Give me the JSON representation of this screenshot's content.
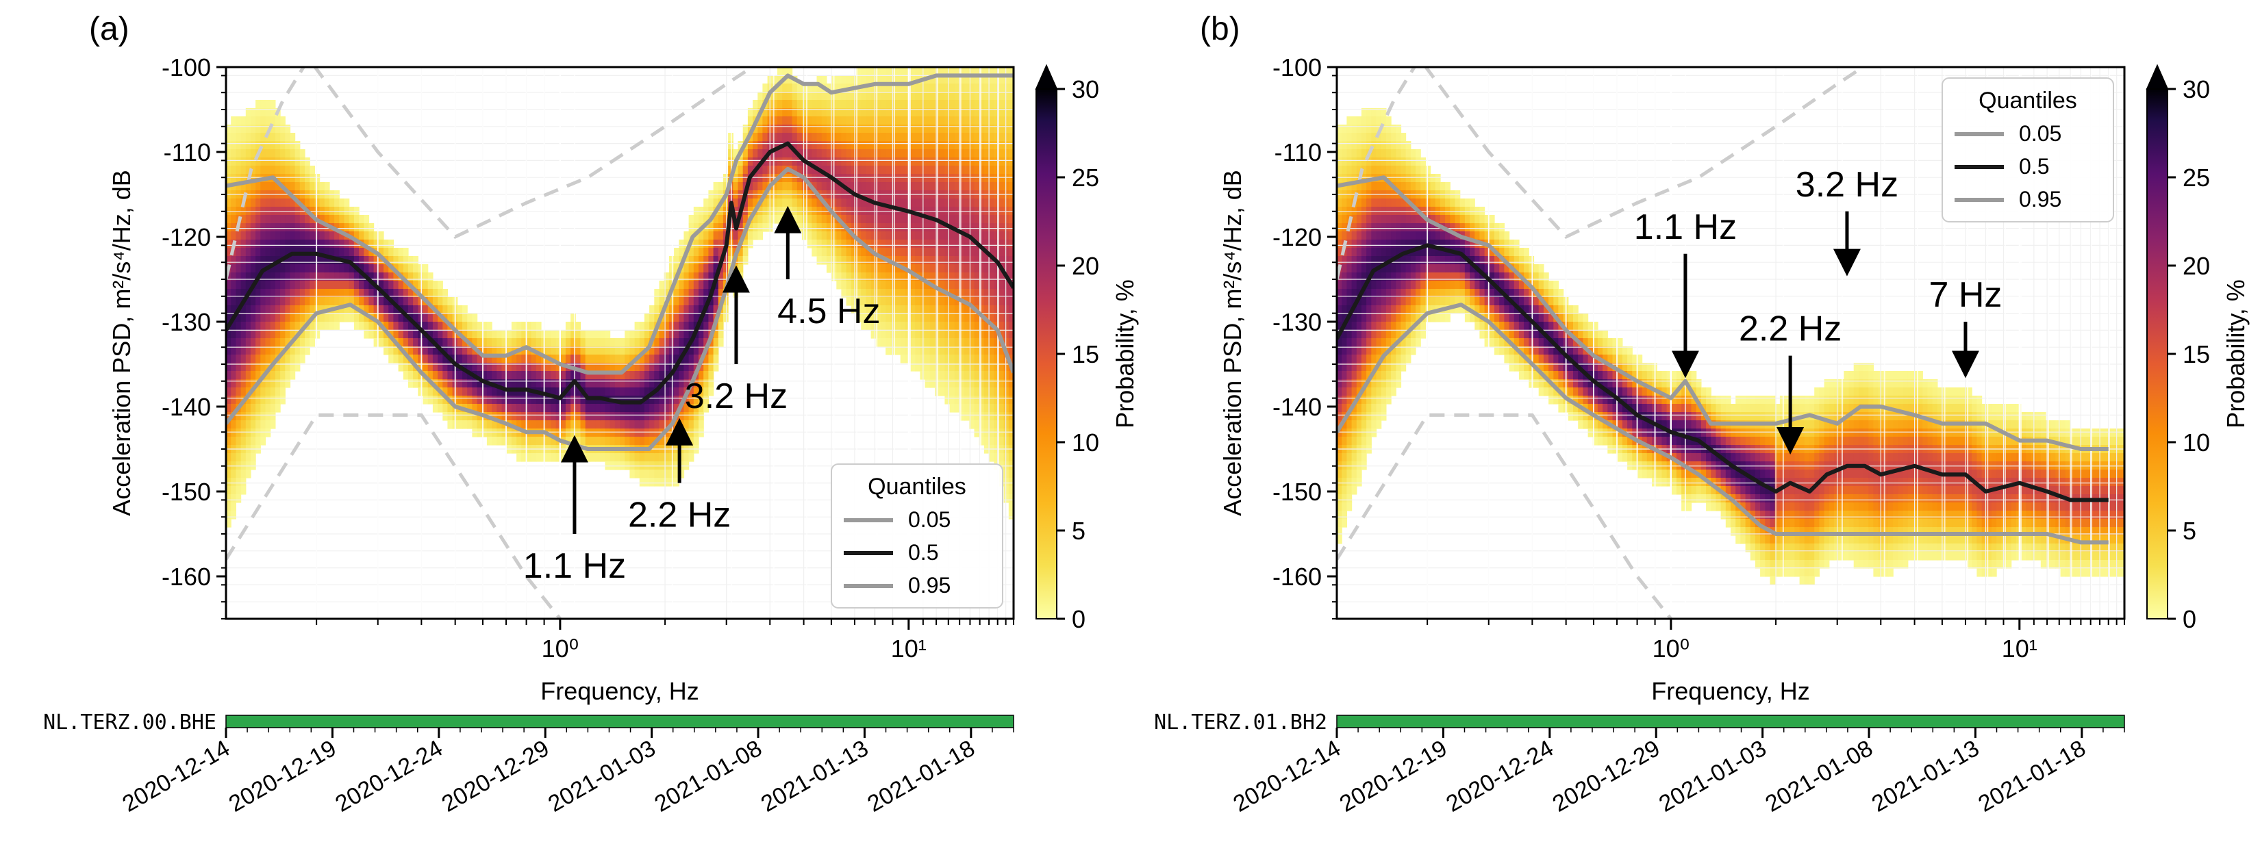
{
  "chart_data": [
    {
      "panel_label": "(a)",
      "type": "heatmap",
      "title": "",
      "xlabel": "Frequency, Hz",
      "ylabel": "Acceleration PSD, m²/s⁴/Hz, dB",
      "xscale": "log",
      "xlim": [
        0.11,
        20
      ],
      "ylim": [
        -165,
        -100
      ],
      "x_ticks": [
        {
          "value": 1,
          "label": "10⁰"
        },
        {
          "value": 10,
          "label": "10¹"
        }
      ],
      "y_ticks": [
        -100,
        -110,
        -120,
        -130,
        -140,
        -150,
        -160
      ],
      "colorbar": {
        "label": "Probability, %",
        "range": [
          0,
          30
        ],
        "ticks": [
          0,
          5,
          10,
          15,
          20,
          25,
          30
        ],
        "extend": "max",
        "colormap": "inferno_r"
      },
      "legend": {
        "title": "Quantiles",
        "placement": "lower-right",
        "entries": [
          {
            "label": "0.05",
            "color": "#9a9a9a"
          },
          {
            "label": "0.5",
            "color": "#1a1a1a"
          },
          {
            "label": "0.95",
            "color": "#9a9a9a"
          }
        ]
      },
      "series": [
        {
          "name": "0.5",
          "color": "#1a1a1a",
          "x": [
            0.11,
            0.14,
            0.17,
            0.2,
            0.25,
            0.3,
            0.4,
            0.5,
            0.6,
            0.7,
            0.8,
            0.9,
            1.0,
            1.1,
            1.2,
            1.3,
            1.5,
            1.7,
            1.9,
            2.1,
            2.4,
            2.7,
            3.0,
            3.1,
            3.2,
            3.5,
            4.0,
            4.5,
            5.0,
            6.0,
            7.0,
            8.0,
            10.0,
            12.0,
            15.0,
            18.0,
            20.0
          ],
          "y": [
            -131,
            -124,
            -122,
            -122,
            -123,
            -126,
            -131,
            -135,
            -137,
            -138,
            -138,
            -138.5,
            -139,
            -137,
            -139,
            -139,
            -139.5,
            -139.5,
            -138,
            -136,
            -132,
            -127,
            -121,
            -116,
            -119,
            -113,
            -110,
            -109,
            -111,
            -113,
            -115,
            -116,
            -117,
            -118,
            -120,
            -123,
            -126
          ]
        },
        {
          "name": "0.05",
          "color": "#9a9a9a",
          "x": [
            0.11,
            0.15,
            0.2,
            0.25,
            0.3,
            0.4,
            0.5,
            0.6,
            0.7,
            0.8,
            0.9,
            1.0,
            1.2,
            1.5,
            1.8,
            2.1,
            2.4,
            2.7,
            3.0,
            3.2,
            3.5,
            4.0,
            4.5,
            5.0,
            6.0,
            7.0,
            8.0,
            10.0,
            12.0,
            15.0,
            18.0,
            20.0
          ],
          "y": [
            -142,
            -135,
            -129,
            -128,
            -130,
            -136,
            -140,
            -141,
            -142,
            -143,
            -143,
            -144,
            -145,
            -145,
            -145,
            -142,
            -137,
            -132,
            -126,
            -122,
            -118,
            -114,
            -112,
            -113,
            -117,
            -120,
            -122,
            -124,
            -126,
            -128,
            -131,
            -136
          ]
        },
        {
          "name": "0.95",
          "color": "#9a9a9a",
          "x": [
            0.11,
            0.15,
            0.2,
            0.25,
            0.3,
            0.4,
            0.5,
            0.6,
            0.7,
            0.8,
            1.0,
            1.2,
            1.5,
            1.8,
            2.1,
            2.4,
            2.7,
            3.0,
            3.2,
            3.5,
            4.0,
            4.5,
            5.0,
            5.5,
            6.0,
            8.0,
            10.0,
            12.0,
            15.0,
            18.0,
            20.0
          ],
          "y": [
            -114,
            -113,
            -118,
            -120,
            -122,
            -127,
            -131,
            -134,
            -134,
            -133,
            -135,
            -136,
            -136,
            -133,
            -126,
            -120,
            -118,
            -115,
            -111,
            -108,
            -103,
            -101,
            -102,
            -102,
            -103,
            -102,
            -102,
            -101,
            -101,
            -101,
            -101
          ]
        }
      ],
      "reference_curves": [
        {
          "name": "low noise model",
          "style": "dashed",
          "color": "#cccccc",
          "x": [
            0.11,
            0.2,
            0.4,
            0.6,
            0.8,
            1.0
          ],
          "y": [
            -158,
            -141,
            -141,
            -152,
            -160,
            -165
          ]
        },
        {
          "name": "high noise model",
          "style": "dashed",
          "color": "#cccccc",
          "x": [
            0.11,
            0.13,
            0.16,
            0.19,
            0.3,
            0.5,
            0.8,
            1.2,
            2.0,
            3.0,
            5.0
          ],
          "y": [
            -125,
            -112,
            -104,
            -99,
            -110,
            -120,
            -116,
            -113,
            -107,
            -102,
            -96
          ]
        }
      ],
      "annotations": [
        {
          "text": "1.1 Hz",
          "arrow_x": 1.1,
          "arrow_tip_y": -144,
          "arrow_tail_y": -155
        },
        {
          "text": "2.2 Hz",
          "arrow_x": 2.2,
          "arrow_tip_y": -142,
          "arrow_tail_y": -149
        },
        {
          "text": "3.2 Hz",
          "arrow_x": 3.2,
          "arrow_tip_y": -124,
          "arrow_tail_y": -135
        },
        {
          "text": "4.5 Hz",
          "arrow_x": 4.5,
          "arrow_tip_y": -117,
          "arrow_tail_y": -125
        }
      ],
      "availability": {
        "station": "NL.TERZ.00.BHE",
        "date_ticks": [
          "2020-12-14",
          "2020-12-19",
          "2020-12-24",
          "2020-12-29",
          "2021-01-03",
          "2021-01-08",
          "2021-01-13",
          "2021-01-18"
        ],
        "bar_color": "#2da64a"
      }
    },
    {
      "panel_label": "(b)",
      "type": "heatmap",
      "title": "",
      "xlabel": "Frequency, Hz",
      "ylabel": "Acceleration PSD, m²/s⁴/Hz, dB",
      "xscale": "log",
      "xlim": [
        0.11,
        20
      ],
      "ylim": [
        -165,
        -100
      ],
      "x_ticks": [
        {
          "value": 1,
          "label": "10⁰"
        },
        {
          "value": 10,
          "label": "10¹"
        }
      ],
      "y_ticks": [
        -100,
        -110,
        -120,
        -130,
        -140,
        -150,
        -160
      ],
      "colorbar": {
        "label": "Probability, %",
        "range": [
          0,
          30
        ],
        "ticks": [
          0,
          5,
          10,
          15,
          20,
          25,
          30
        ],
        "extend": "max",
        "colormap": "inferno_r"
      },
      "legend": {
        "title": "Quantiles",
        "placement": "upper-right",
        "entries": [
          {
            "label": "0.05",
            "color": "#9a9a9a"
          },
          {
            "label": "0.5",
            "color": "#1a1a1a"
          },
          {
            "label": "0.95",
            "color": "#9a9a9a"
          }
        ]
      },
      "series": [
        {
          "name": "0.5",
          "color": "#1a1a1a",
          "x": [
            0.11,
            0.14,
            0.17,
            0.2,
            0.25,
            0.3,
            0.4,
            0.5,
            0.6,
            0.7,
            0.8,
            1.0,
            1.2,
            1.5,
            1.8,
            2.0,
            2.2,
            2.5,
            2.8,
            3.2,
            3.6,
            4.0,
            5.0,
            6.0,
            7.0,
            8.0,
            10.0,
            12.0,
            14.0,
            16.0,
            18.0
          ],
          "y": [
            -132,
            -124,
            -122,
            -121,
            -122,
            -125,
            -130,
            -134,
            -137,
            -139,
            -141,
            -143,
            -144,
            -147,
            -149,
            -150,
            -149,
            -150,
            -148,
            -147,
            -147,
            -148,
            -147,
            -148,
            -148,
            -150,
            -149,
            -150,
            -151,
            -151,
            -151
          ]
        },
        {
          "name": "0.05",
          "color": "#9a9a9a",
          "x": [
            0.11,
            0.15,
            0.2,
            0.25,
            0.3,
            0.4,
            0.5,
            0.6,
            0.8,
            1.0,
            1.2,
            1.5,
            1.8,
            2.0,
            2.5,
            3.0,
            4.0,
            5.0,
            6.0,
            8.0,
            10.0,
            12.0,
            15.0,
            18.0
          ],
          "y": [
            -143,
            -134,
            -129,
            -128,
            -130,
            -135,
            -139,
            -141,
            -144,
            -146,
            -148,
            -151,
            -154,
            -155,
            -155,
            -155,
            -155,
            -155,
            -155,
            -155,
            -155,
            -155,
            -156,
            -156
          ]
        },
        {
          "name": "0.95",
          "color": "#9a9a9a",
          "x": [
            0.11,
            0.15,
            0.2,
            0.25,
            0.3,
            0.4,
            0.5,
            0.6,
            0.8,
            1.0,
            1.1,
            1.3,
            1.6,
            2.0,
            2.5,
            3.0,
            3.5,
            4.0,
            5.0,
            6.0,
            8.0,
            10.0,
            12.0,
            15.0,
            18.0
          ],
          "y": [
            -114,
            -113,
            -118,
            -120,
            -121,
            -126,
            -131,
            -134,
            -137,
            -139,
            -137,
            -142,
            -142,
            -142,
            -141,
            -142,
            -140,
            -140,
            -141,
            -142,
            -142,
            -144,
            -144,
            -145,
            -145
          ]
        }
      ],
      "reference_curves": [
        {
          "name": "low noise model",
          "style": "dashed",
          "color": "#cccccc",
          "x": [
            0.11,
            0.2,
            0.4,
            0.6,
            0.8,
            1.0
          ],
          "y": [
            -158,
            -141,
            -141,
            -152,
            -160,
            -165
          ]
        },
        {
          "name": "high noise model",
          "style": "dashed",
          "color": "#cccccc",
          "x": [
            0.11,
            0.13,
            0.16,
            0.19,
            0.3,
            0.5,
            0.8,
            1.2,
            2.0,
            3.0,
            5.0
          ],
          "y": [
            -125,
            -112,
            -104,
            -99,
            -110,
            -120,
            -116,
            -113,
            -107,
            -102,
            -96
          ]
        }
      ],
      "annotations": [
        {
          "text": "1.1 Hz",
          "arrow_x": 1.1,
          "arrow_tip_y": -136,
          "arrow_tail_y": -122
        },
        {
          "text": "2.2 Hz",
          "arrow_x": 2.2,
          "arrow_tip_y": -145,
          "arrow_tail_y": -134
        },
        {
          "text": "3.2 Hz",
          "arrow_x": 3.2,
          "arrow_tip_y": -124,
          "arrow_tail_y": -117
        },
        {
          "text": "7 Hz",
          "arrow_x": 7.0,
          "arrow_tip_y": -136,
          "arrow_tail_y": -130
        }
      ],
      "availability": {
        "station": "NL.TERZ.01.BH2",
        "date_ticks": [
          "2020-12-14",
          "2020-12-19",
          "2020-12-24",
          "2020-12-29",
          "2021-01-03",
          "2021-01-08",
          "2021-01-13",
          "2021-01-18"
        ],
        "bar_color": "#2da64a"
      }
    }
  ]
}
